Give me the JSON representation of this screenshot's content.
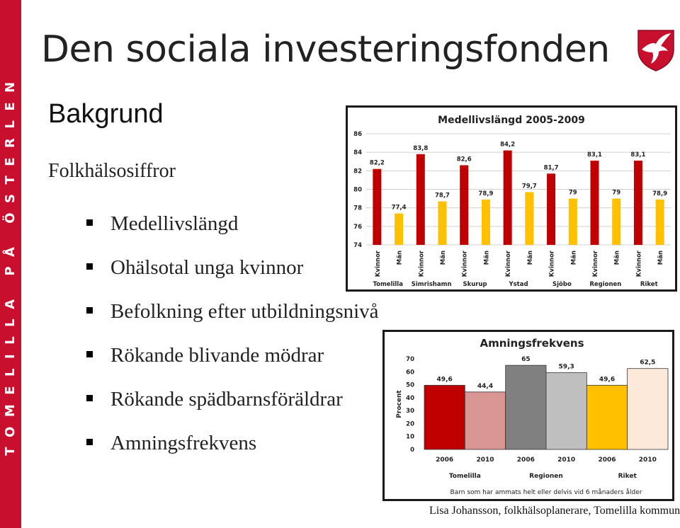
{
  "side_banner": "TOMELILLA PÅ ÖSTERLEN",
  "slide": {
    "title": "Den sociala investeringsfonden",
    "subtitle": "Bakgrund",
    "intro": "Folkhälsosiffror",
    "bullets": [
      "Medellivslängd",
      "Ohälsotal unga kvinnor",
      "Befolkning efter utbildningsnivå",
      "Rökande blivande mödrar",
      "Rökande spädbarnsföräldrar",
      "Amningsfrekvens"
    ],
    "footer": "Lisa Johansson, folkhälsoplanerare, Tomelilla kommun"
  },
  "colors": {
    "brand_red": "#c8102e",
    "bar_dark_red": "#c00000",
    "bar_yellow": "#ffc000",
    "bar_pink": "#da9694",
    "bar_dark_gray": "#808080",
    "bar_light_gray": "#bfbfbf",
    "bar_light_pink": "#fde9d9"
  },
  "icons": {
    "logo": "red-kite-shield-icon"
  },
  "chart_data": [
    {
      "type": "bar",
      "title": "Medellivslängd 2005-2009",
      "categories": [
        "Kvinnor",
        "Män",
        "Kvinnor",
        "Män",
        "Kvinnor",
        "Män",
        "Kvinnor",
        "Män",
        "Kvinnor",
        "Män",
        "Kvinnor",
        "Män",
        "Kvinnor",
        "Män"
      ],
      "groups": [
        "Tomelilla",
        "Simrishamn",
        "Skurup",
        "Ystad",
        "Sjöbo",
        "Regionen",
        "Riket"
      ],
      "values": [
        82.2,
        77.4,
        83.8,
        78.7,
        82.6,
        78.9,
        84.2,
        79.7,
        81.7,
        79,
        83.1,
        79,
        83.1,
        78.9
      ],
      "value_labels": [
        "82,2",
        "77,4",
        "83,8",
        "78,7",
        "82,6",
        "78,9",
        "84,2",
        "79,7",
        "81,7",
        "79",
        "83,1",
        "79",
        "83,1",
        "78,9"
      ],
      "yticks": [
        74,
        76,
        78,
        80,
        82,
        84,
        86
      ],
      "ylim": [
        74,
        86
      ],
      "colors": [
        "#c00000",
        "#ffc000"
      ],
      "grid": true
    },
    {
      "type": "bar",
      "title": "Amningsfrekvens",
      "ylabel": "Procent",
      "xlabel": "Barn som har ammats helt eller delvis vid 6 månaders ålder",
      "categories": [
        "2006",
        "2010",
        "2006",
        "2010",
        "2006",
        "2010"
      ],
      "groups": [
        "Tomelilla",
        "Regionen",
        "Riket"
      ],
      "values": [
        49.6,
        44.4,
        65,
        59.3,
        49.6,
        62.5
      ],
      "value_labels": [
        "49,6",
        "44,4",
        "65",
        "59,3",
        "49,6",
        "62,5"
      ],
      "yticks": [
        0,
        10,
        20,
        30,
        40,
        50,
        60,
        70
      ],
      "ylim": [
        0,
        70
      ],
      "colors": [
        "#c00000",
        "#da9694",
        "#808080",
        "#bfbfbf",
        "#ffc000",
        "#fde9d9"
      ],
      "grid": false
    }
  ]
}
